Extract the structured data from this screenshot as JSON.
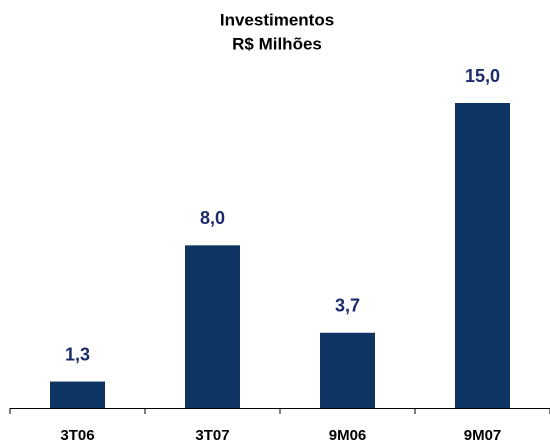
{
  "chart_data": {
    "type": "bar",
    "title": "Investimentos",
    "subtitle": "R$ Milhões",
    "categories": [
      "3T06",
      "3T07",
      "9M06",
      "9M07"
    ],
    "values": [
      1.3,
      8.0,
      3.7,
      15.0
    ],
    "value_labels": [
      "1,3",
      "8,0",
      "3,7",
      "15,0"
    ],
    "color": "#0d3463"
  }
}
